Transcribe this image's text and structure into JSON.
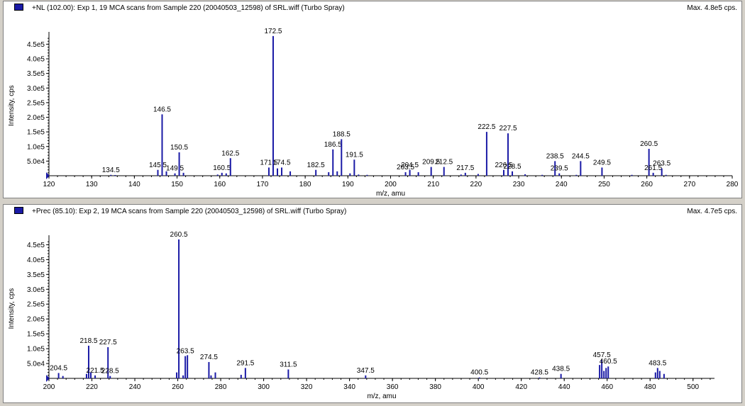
{
  "colors": {
    "peak": "#1a1aa6",
    "axis": "#000000",
    "background": "#ffffff"
  },
  "panels": [
    {
      "title": "+NL (102.00): Exp 1, 19 MCA scans from Sample 220 (20040503_12598) of SRL.wiff (Turbo Spray)",
      "max_label": "Max. 4.8e5 cps."
    },
    {
      "title": "+Prec (85.10): Exp 2, 19 MCA scans from Sample 220 (20040503_12598) of SRL.wiff (Turbo Spray)",
      "max_label": "Max. 4.7e5 cps."
    }
  ],
  "chart_data": [
    {
      "type": "bar",
      "xlabel": "m/z, amu",
      "ylabel": "Intensity, cps",
      "xlim": [
        120,
        280
      ],
      "ylim": [
        0,
        480000
      ],
      "xticks": [
        "120",
        "130",
        "140",
        "150",
        "160",
        "170",
        "180",
        "190",
        "200",
        "210",
        "220",
        "230",
        "240",
        "250",
        "260",
        "270",
        "280"
      ],
      "xtick_values": [
        120,
        130,
        140,
        150,
        160,
        170,
        180,
        190,
        200,
        210,
        220,
        230,
        240,
        250,
        260,
        270,
        280
      ],
      "yticks": [
        "5.0e4",
        "1.0e5",
        "1.5e5",
        "2.0e5",
        "2.5e5",
        "3.0e5",
        "3.5e5",
        "4.0e5",
        "4.5e5"
      ],
      "ytick_values": [
        50000,
        100000,
        150000,
        200000,
        250000,
        300000,
        350000,
        400000,
        450000
      ],
      "peaks": [
        {
          "mz": 134.5,
          "intensity": 3000,
          "label": "134.5"
        },
        {
          "mz": 145.5,
          "intensity": 20000,
          "label": "145.5"
        },
        {
          "mz": 146.5,
          "intensity": 210000,
          "label": "146.5"
        },
        {
          "mz": 149.5,
          "intensity": 8000,
          "label": "149.5"
        },
        {
          "mz": 150.5,
          "intensity": 80000,
          "label": "150.5"
        },
        {
          "mz": 160.5,
          "intensity": 10000,
          "label": "160.5"
        },
        {
          "mz": 162.5,
          "intensity": 60000,
          "label": "162.5"
        },
        {
          "mz": 171.5,
          "intensity": 28000,
          "label": "171.5"
        },
        {
          "mz": 172.5,
          "intensity": 478000,
          "label": "172.5"
        },
        {
          "mz": 174.5,
          "intensity": 28000,
          "label": "174.5"
        },
        {
          "mz": 182.5,
          "intensity": 20000,
          "label": "182.5"
        },
        {
          "mz": 186.5,
          "intensity": 90000,
          "label": "186.5"
        },
        {
          "mz": 188.5,
          "intensity": 125000,
          "label": "188.5"
        },
        {
          "mz": 191.5,
          "intensity": 55000,
          "label": "191.5"
        },
        {
          "mz": 203.5,
          "intensity": 12000,
          "label": "203.5"
        },
        {
          "mz": 204.5,
          "intensity": 20000,
          "label": "204.5"
        },
        {
          "mz": 209.5,
          "intensity": 30000,
          "label": "209.5"
        },
        {
          "mz": 212.5,
          "intensity": 30000,
          "label": "212.5"
        },
        {
          "mz": 217.5,
          "intensity": 10000,
          "label": "217.5"
        },
        {
          "mz": 222.5,
          "intensity": 150000,
          "label": "222.5"
        },
        {
          "mz": 226.5,
          "intensity": 20000,
          "label": "226.5"
        },
        {
          "mz": 227.5,
          "intensity": 145000,
          "label": "227.5"
        },
        {
          "mz": 228.5,
          "intensity": 15000,
          "label": "228.5"
        },
        {
          "mz": 238.5,
          "intensity": 50000,
          "label": "238.5"
        },
        {
          "mz": 239.5,
          "intensity": 8000,
          "label": "239.5"
        },
        {
          "mz": 244.5,
          "intensity": 50000,
          "label": "244.5"
        },
        {
          "mz": 249.5,
          "intensity": 28000,
          "label": "249.5"
        },
        {
          "mz": 260.5,
          "intensity": 92000,
          "label": "260.5"
        },
        {
          "mz": 261.5,
          "intensity": 10000,
          "label": "261.5"
        },
        {
          "mz": 263.5,
          "intensity": 25000,
          "label": "263.5"
        },
        {
          "mz": 135.5,
          "intensity": 2000,
          "label": ""
        },
        {
          "mz": 147.5,
          "intensity": 15000,
          "label": ""
        },
        {
          "mz": 151.5,
          "intensity": 10000,
          "label": ""
        },
        {
          "mz": 159.5,
          "intensity": 4000,
          "label": ""
        },
        {
          "mz": 161.5,
          "intensity": 8000,
          "label": ""
        },
        {
          "mz": 173.5,
          "intensity": 25000,
          "label": ""
        },
        {
          "mz": 176.5,
          "intensity": 15000,
          "label": ""
        },
        {
          "mz": 185.5,
          "intensity": 12000,
          "label": ""
        },
        {
          "mz": 187.5,
          "intensity": 15000,
          "label": ""
        },
        {
          "mz": 190.5,
          "intensity": 8000,
          "label": ""
        },
        {
          "mz": 192.5,
          "intensity": 4000,
          "label": ""
        },
        {
          "mz": 194.5,
          "intensity": 3000,
          "label": ""
        },
        {
          "mz": 206.5,
          "intensity": 12000,
          "label": ""
        },
        {
          "mz": 216.5,
          "intensity": 4000,
          "label": ""
        },
        {
          "mz": 220.5,
          "intensity": 6000,
          "label": ""
        },
        {
          "mz": 231.5,
          "intensity": 5000,
          "label": ""
        },
        {
          "mz": 235.5,
          "intensity": 3000,
          "label": ""
        },
        {
          "mz": 243.5,
          "intensity": 3000,
          "label": ""
        },
        {
          "mz": 256.5,
          "intensity": 3000,
          "label": ""
        },
        {
          "mz": 264.5,
          "intensity": 3000,
          "label": ""
        }
      ]
    },
    {
      "type": "bar",
      "xlabel": "m/z, amu",
      "ylabel": "Intensity, cps",
      "xlim": [
        200,
        510
      ],
      "ylim": [
        0,
        470000
      ],
      "xticks": [
        "200",
        "220",
        "240",
        "260",
        "280",
        "300",
        "320",
        "340",
        "360",
        "380",
        "400",
        "420",
        "440",
        "460",
        "480",
        "500"
      ],
      "xtick_values": [
        200,
        220,
        240,
        260,
        280,
        300,
        320,
        340,
        360,
        380,
        400,
        420,
        440,
        460,
        480,
        500
      ],
      "yticks": [
        "5.0e4",
        "1.0e5",
        "1.5e5",
        "2.0e5",
        "2.5e5",
        "3.0e5",
        "3.5e5",
        "4.0e5",
        "4.5e5"
      ],
      "ytick_values": [
        50000,
        100000,
        150000,
        200000,
        250000,
        300000,
        350000,
        400000,
        450000
      ],
      "peaks": [
        {
          "mz": 204.5,
          "intensity": 18000,
          "label": "204.5"
        },
        {
          "mz": 218.5,
          "intensity": 110000,
          "label": "218.5"
        },
        {
          "mz": 221.5,
          "intensity": 10000,
          "label": "221.5"
        },
        {
          "mz": 227.5,
          "intensity": 105000,
          "label": "227.5"
        },
        {
          "mz": 228.5,
          "intensity": 8000,
          "label": "228.5"
        },
        {
          "mz": 260.5,
          "intensity": 468000,
          "label": "260.5"
        },
        {
          "mz": 263.5,
          "intensity": 75000,
          "label": "263.5"
        },
        {
          "mz": 274.5,
          "intensity": 55000,
          "label": "274.5"
        },
        {
          "mz": 291.5,
          "intensity": 35000,
          "label": "291.5"
        },
        {
          "mz": 311.5,
          "intensity": 30000,
          "label": "311.5"
        },
        {
          "mz": 347.5,
          "intensity": 10000,
          "label": "347.5"
        },
        {
          "mz": 400.5,
          "intensity": 3000,
          "label": "400.5"
        },
        {
          "mz": 428.5,
          "intensity": 3000,
          "label": "428.5"
        },
        {
          "mz": 438.5,
          "intensity": 15000,
          "label": "438.5"
        },
        {
          "mz": 457.5,
          "intensity": 62000,
          "label": "457.5"
        },
        {
          "mz": 460.5,
          "intensity": 40000,
          "label": "460.5"
        },
        {
          "mz": 483.5,
          "intensity": 35000,
          "label": "483.5"
        },
        {
          "mz": 206.5,
          "intensity": 8000,
          "label": ""
        },
        {
          "mz": 217.5,
          "intensity": 15000,
          "label": ""
        },
        {
          "mz": 219.5,
          "intensity": 20000,
          "label": ""
        },
        {
          "mz": 259.5,
          "intensity": 20000,
          "label": ""
        },
        {
          "mz": 262.5,
          "intensity": 10000,
          "label": ""
        },
        {
          "mz": 264.5,
          "intensity": 78000,
          "label": ""
        },
        {
          "mz": 275.5,
          "intensity": 10000,
          "label": ""
        },
        {
          "mz": 277.5,
          "intensity": 20000,
          "label": ""
        },
        {
          "mz": 289.5,
          "intensity": 12000,
          "label": ""
        },
        {
          "mz": 456.5,
          "intensity": 45000,
          "label": ""
        },
        {
          "mz": 458.5,
          "intensity": 25000,
          "label": ""
        },
        {
          "mz": 459.5,
          "intensity": 35000,
          "label": ""
        },
        {
          "mz": 482.5,
          "intensity": 20000,
          "label": ""
        },
        {
          "mz": 484.5,
          "intensity": 25000,
          "label": ""
        },
        {
          "mz": 486.5,
          "intensity": 15000,
          "label": ""
        }
      ]
    }
  ]
}
